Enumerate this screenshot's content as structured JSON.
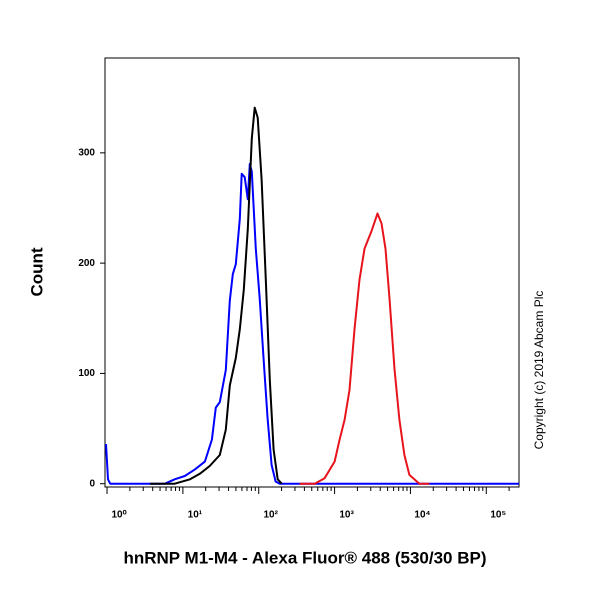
{
  "chart_data": {
    "type": "line",
    "xlabel": "hnRNP M1-M4 - Alexa Fluor® 488 (530/30 BP)",
    "ylabel": "Count",
    "annotation": "Copyright (c) 2019 Abcam Plc",
    "xscale": "log",
    "xlim": [
      0.94,
      270000
    ],
    "ylim": [
      -3,
      386
    ],
    "xticks": [
      {
        "value": 1,
        "label": "10⁰"
      },
      {
        "value": 10,
        "label": "10¹"
      },
      {
        "value": 100,
        "label": "10²"
      },
      {
        "value": 1000,
        "label": "10³"
      },
      {
        "value": 10000,
        "label": "10⁴"
      },
      {
        "value": 100000,
        "label": "10⁵"
      }
    ],
    "yticks": [
      0,
      100,
      200,
      300
    ],
    "series": [
      {
        "color": "#0000ff",
        "x": [
          0.97,
          1.03,
          1.1,
          3.7,
          5.8,
          7.8,
          10.6,
          14.4,
          19.5,
          24.1,
          27.2,
          30.7,
          36.8,
          41.5,
          45.5,
          49.8,
          56.2,
          59.7,
          65.4,
          71.7,
          76.2,
          80.9,
          91.4,
          103,
          116,
          131,
          148,
          167,
          189,
          270000
        ],
        "values": [
          36,
          4,
          0,
          0,
          0,
          4,
          7,
          13,
          20,
          40,
          69,
          74,
          103,
          166,
          190,
          199,
          240,
          281,
          278,
          258,
          290,
          283,
          213,
          168,
          113,
          59,
          17,
          2,
          0,
          0
        ]
      },
      {
        "color": "#000000",
        "x": [
          3.7,
          7.8,
          12.4,
          16.7,
          22.6,
          30.7,
          36.8,
          41.5,
          49.8,
          56.2,
          63.5,
          71.7,
          80.9,
          88.5,
          97,
          109,
          124,
          140,
          157,
          178,
          201
        ],
        "values": [
          0,
          0,
          4,
          9,
          16,
          26,
          49,
          89,
          114,
          140,
          176,
          231,
          313,
          341,
          332,
          276,
          185,
          94,
          31,
          4,
          0
        ]
      },
      {
        "color": "#e8141c",
        "x": [
          346,
          546,
          738,
          1000,
          1164,
          1355,
          1575,
          1833,
          2133,
          2481,
          3067,
          3681,
          4151,
          4688,
          5290,
          6157,
          7161,
          8332,
          9703,
          13130,
          17780
        ],
        "values": [
          0,
          0,
          5,
          20,
          40,
          58,
          85,
          140,
          185,
          213,
          229,
          245,
          236,
          213,
          168,
          104,
          58,
          26,
          8,
          0,
          0
        ]
      }
    ]
  }
}
